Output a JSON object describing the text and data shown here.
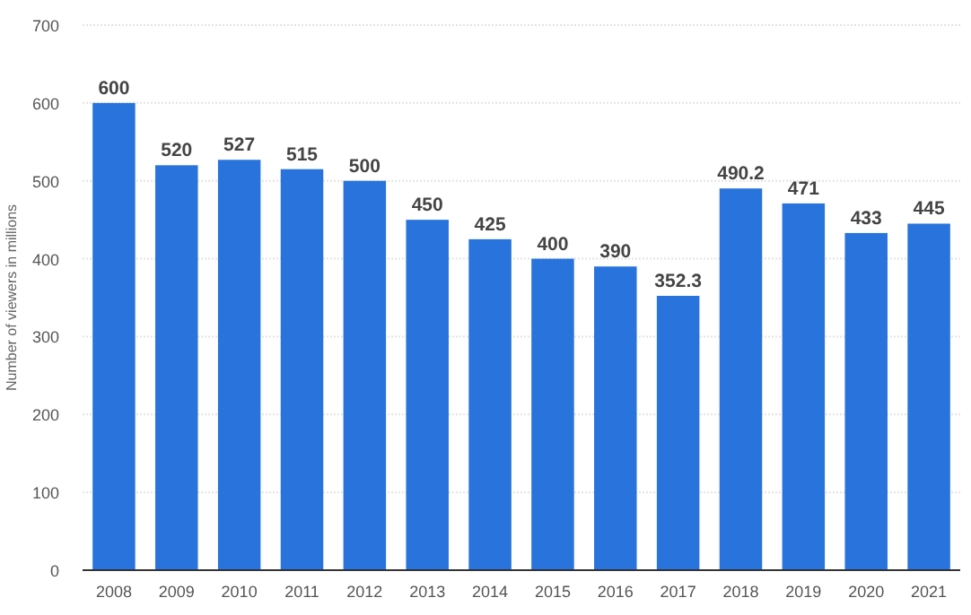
{
  "chart_data": {
    "type": "bar",
    "ylabel": "Number of viewers in millions",
    "categories": [
      "2008",
      "2009",
      "2010",
      "2011",
      "2012",
      "2013",
      "2014",
      "2015",
      "2016",
      "2017",
      "2018",
      "2019",
      "2020",
      "2021"
    ],
    "values": [
      600,
      520,
      527,
      515,
      500,
      450,
      425,
      400,
      390,
      352.3,
      490.2,
      471,
      433,
      445
    ],
    "color": "#2874dc",
    "ylim": [
      0,
      700
    ],
    "yticks": [
      0,
      100,
      200,
      300,
      400,
      500,
      600,
      700
    ],
    "grid": "y",
    "data_labels": true
  }
}
